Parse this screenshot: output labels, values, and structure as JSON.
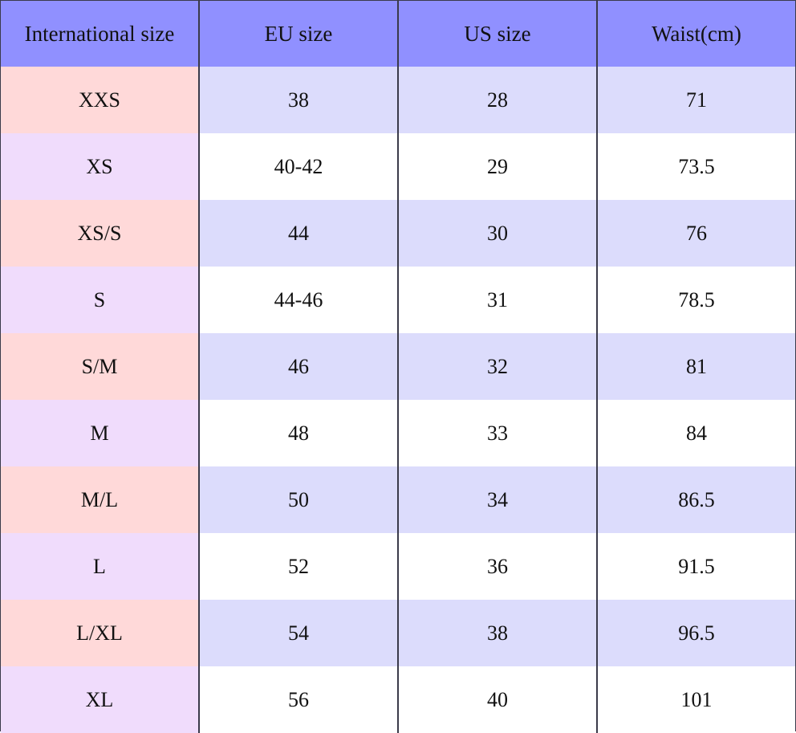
{
  "table": {
    "headers": [
      "International size",
      "EU size",
      "US size",
      "Waist(cm)"
    ],
    "rows": [
      [
        "XXS",
        "38",
        "28",
        "71"
      ],
      [
        "XS",
        "40-42",
        "29",
        "73.5"
      ],
      [
        "XS/S",
        "44",
        "30",
        "76"
      ],
      [
        "S",
        "44-46",
        "31",
        "78.5"
      ],
      [
        "S/M",
        "46",
        "32",
        "81"
      ],
      [
        "M",
        "48",
        "33",
        "84"
      ],
      [
        "M/L",
        "50",
        "34",
        "86.5"
      ],
      [
        "L",
        "52",
        "36",
        "91.5"
      ],
      [
        "L/XL",
        "54",
        "38",
        "96.5"
      ],
      [
        "XL",
        "56",
        "40",
        "101"
      ]
    ]
  },
  "colors": {
    "header_bg": "#9090ff",
    "row_odd_bg": "#dcdcfc",
    "row_even_bg": "#ffffff",
    "first_col_odd_bg": "#ffd9d9",
    "first_col_even_bg": "#f0dcfc",
    "border": "#3a3a4a"
  }
}
